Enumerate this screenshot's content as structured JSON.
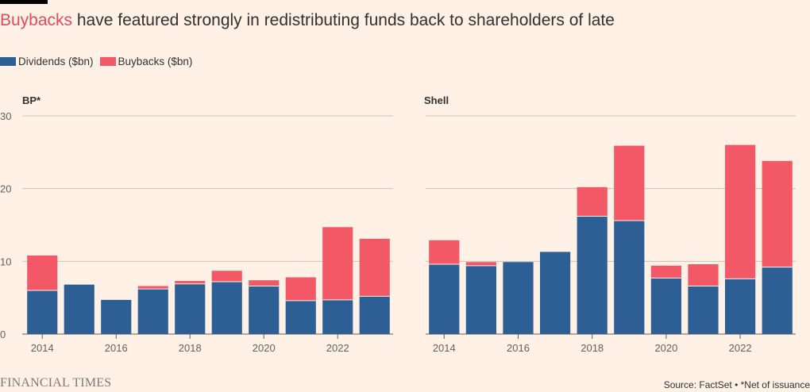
{
  "title": {
    "highlight": "Buybacks",
    "rest": " have featured strongly in redistributing funds back to shareholders of late"
  },
  "legend": [
    {
      "label": "Dividends ($bn)",
      "color": "#2d5e94"
    },
    {
      "label": "Buybacks ($bn)",
      "color": "#f25865"
    }
  ],
  "chart_data": [
    {
      "type": "bar",
      "stacked": true,
      "title": "BP*",
      "x": [
        2014,
        2015,
        2016,
        2017,
        2018,
        2019,
        2020,
        2021,
        2022,
        2023
      ],
      "tick_labels": [
        "2014",
        "2016",
        "2018",
        "2020",
        "2022"
      ],
      "ylim": [
        0,
        30
      ],
      "yticks": [
        0,
        10,
        20,
        30
      ],
      "grid": true,
      "series": [
        {
          "name": "Dividends ($bn)",
          "color": "#2d5e94",
          "values": [
            6.0,
            6.8,
            4.7,
            6.2,
            6.9,
            7.2,
            6.6,
            4.6,
            4.7,
            5.2
          ]
        },
        {
          "name": "Buybacks ($bn)",
          "color": "#f25865",
          "values": [
            4.8,
            0,
            0,
            0.4,
            0.4,
            1.5,
            0.8,
            3.2,
            10.0,
            7.9
          ]
        }
      ]
    },
    {
      "type": "bar",
      "stacked": true,
      "title": "Shell",
      "x": [
        2014,
        2015,
        2016,
        2017,
        2018,
        2019,
        2020,
        2021,
        2022,
        2023
      ],
      "tick_labels": [
        "2014",
        "2016",
        "2018",
        "2020",
        "2022"
      ],
      "ylim": [
        0,
        30
      ],
      "yticks": [
        0,
        10,
        20,
        30
      ],
      "grid": true,
      "series": [
        {
          "name": "Dividends ($bn)",
          "color": "#2d5e94",
          "values": [
            9.6,
            9.4,
            9.9,
            11.3,
            16.2,
            15.6,
            7.7,
            6.6,
            7.6,
            9.2
          ]
        },
        {
          "name": "Buybacks ($bn)",
          "color": "#f25865",
          "values": [
            3.3,
            0.5,
            0,
            0,
            4.0,
            10.3,
            1.7,
            3.0,
            18.4,
            14.6
          ]
        }
      ]
    }
  ],
  "footer": {
    "brand": "FINANCIAL TIMES",
    "source": "Source: FactSet • *Net of issuance"
  }
}
